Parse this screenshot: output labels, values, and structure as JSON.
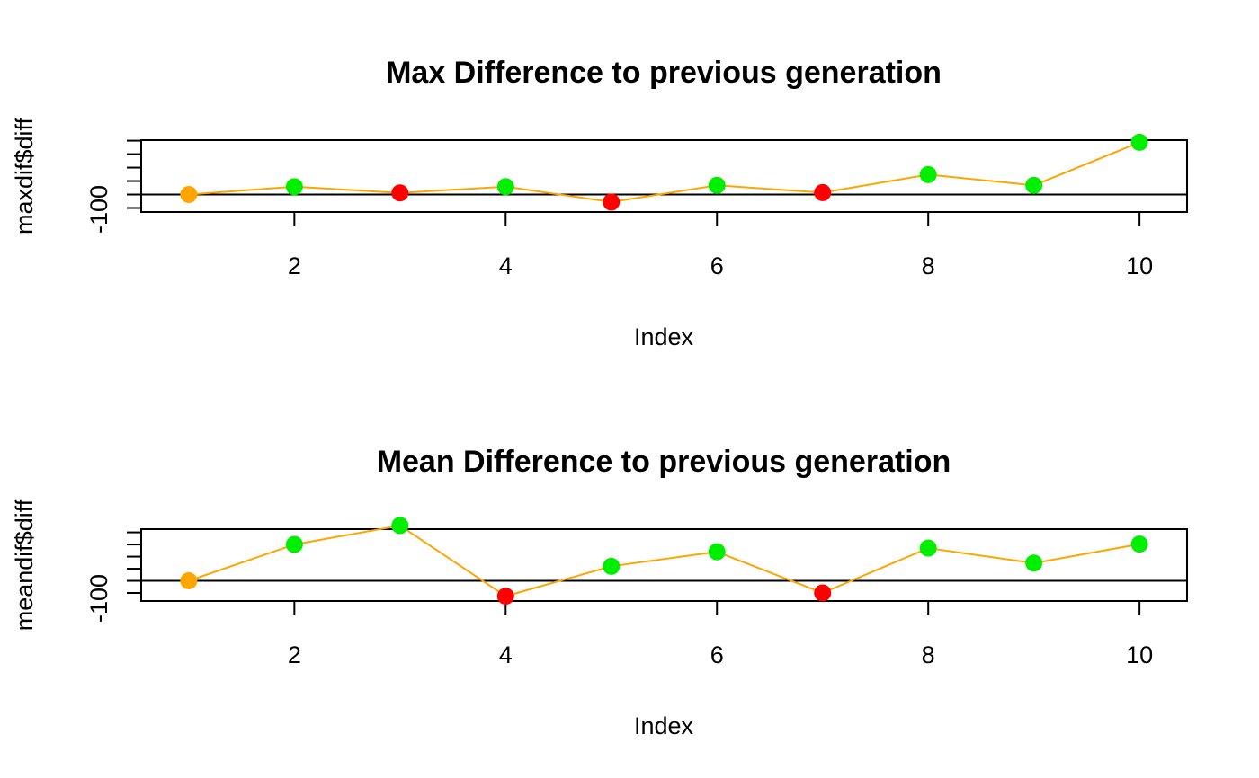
{
  "chart_data": [
    {
      "type": "line",
      "title": "Max Difference to previous generation",
      "xlabel": "Index",
      "ylabel": "maxdif$diff",
      "x": [
        1,
        2,
        3,
        4,
        5,
        6,
        7,
        8,
        9,
        10
      ],
      "values": [
        -100,
        45,
        -70,
        45,
        -240,
        70,
        -65,
        270,
        70,
        870
      ],
      "point_colors": [
        "#FFA500",
        "#00EE00",
        "#FF0000",
        "#00EE00",
        "#FF0000",
        "#00EE00",
        "#FF0000",
        "#00EE00",
        "#00EE00",
        "#00EE00"
      ],
      "line_color": "#FFA500",
      "xlim": [
        0.55,
        10.45
      ],
      "ylim": [
        -425,
        910
      ],
      "x_ticks": [
        2,
        4,
        6,
        8,
        10
      ],
      "y_tick_values": [
        -350,
        -100,
        150,
        400,
        650,
        900
      ],
      "y_tick_label": "-100",
      "hline_y": -100,
      "grid": false
    },
    {
      "type": "line",
      "title": "Mean Difference to previous generation",
      "xlabel": "Index",
      "ylabel": "meandif$diff",
      "x": [
        1,
        2,
        3,
        4,
        5,
        6,
        7,
        8,
        9,
        10
      ],
      "values": [
        -100,
        350,
        585,
        -290,
        80,
        260,
        -250,
        305,
        120,
        355
      ],
      "point_colors": [
        "#FFA500",
        "#00EE00",
        "#00EE00",
        "#FF0000",
        "#00EE00",
        "#00EE00",
        "#FF0000",
        "#00EE00",
        "#00EE00",
        "#00EE00"
      ],
      "line_color": "#FFA500",
      "xlim": [
        0.55,
        10.45
      ],
      "ylim": [
        -350,
        540
      ],
      "x_ticks": [
        2,
        4,
        6,
        8,
        10
      ],
      "y_tick_values": [
        -250,
        -100,
        50,
        200,
        350,
        500
      ],
      "y_tick_label": "-100",
      "hline_y": -100,
      "grid": false
    }
  ]
}
